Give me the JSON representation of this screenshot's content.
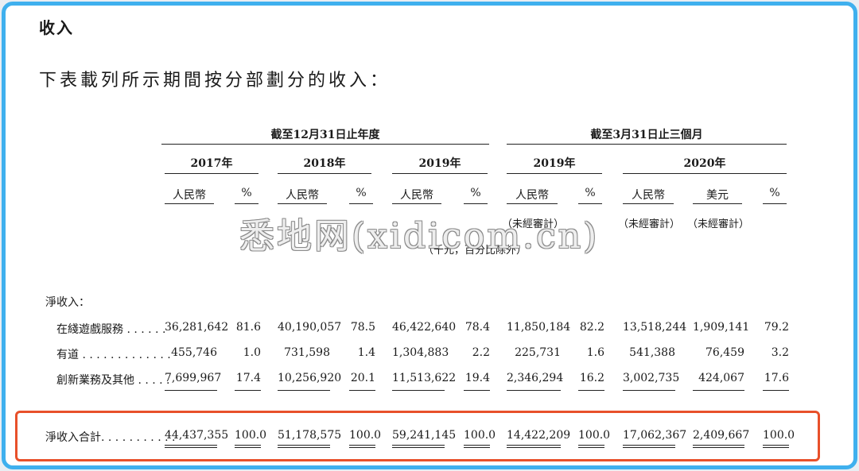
{
  "section_title": "收入",
  "intro": "下表載列所示期間按分部劃分的收入：",
  "groups": {
    "year_end": "截至12月31日止年度",
    "three_months": "截至3月31日止三個月"
  },
  "years": [
    "2017年",
    "2018年",
    "2019年",
    "2019年",
    "2020年"
  ],
  "units": {
    "rmb": "人民幣",
    "pct": "%",
    "usd": "美元",
    "unaudited": "（未經審計）",
    "thousands_note": "（千元，百分比除外）"
  },
  "rows": {
    "net_revenue_label": "淨收入：",
    "items": [
      {
        "label": "在綫遊戲服務 . . . . . .",
        "values": [
          "36,281,642",
          "81.6",
          "40,190,057",
          "78.5",
          "46,422,640",
          "78.4",
          "11,850,184",
          "82.2",
          "13,518,244",
          "1,909,141",
          "79.2"
        ]
      },
      {
        "label": "有道 . . . . . . . . . . . . .",
        "values": [
          "455,746",
          "1.0",
          "731,598",
          "1.4",
          "1,304,883",
          "2.2",
          "225,731",
          "1.6",
          "541,388",
          "76,459",
          "3.2"
        ]
      },
      {
        "label": "創新業務及其他 . . . . .",
        "values": [
          "7,699,967",
          "17.4",
          "10,256,920",
          "20.1",
          "11,513,622",
          "19.4",
          "2,346,294",
          "16.2",
          "3,002,735",
          "424,067",
          "17.6"
        ]
      }
    ],
    "total": {
      "label": "淨收入合計. . . . . . . . . . .",
      "values": [
        "44,437,355",
        "100.0",
        "51,178,575",
        "100.0",
        "59,241,145",
        "100.0",
        "14,422,209",
        "100.0",
        "17,062,367",
        "2,409,667",
        "100.0"
      ]
    }
  },
  "watermark": "悉地网(xidicom.cn)",
  "colors": {
    "frame_border": "#3fb0ee",
    "highlight_border": "#e8502a"
  }
}
